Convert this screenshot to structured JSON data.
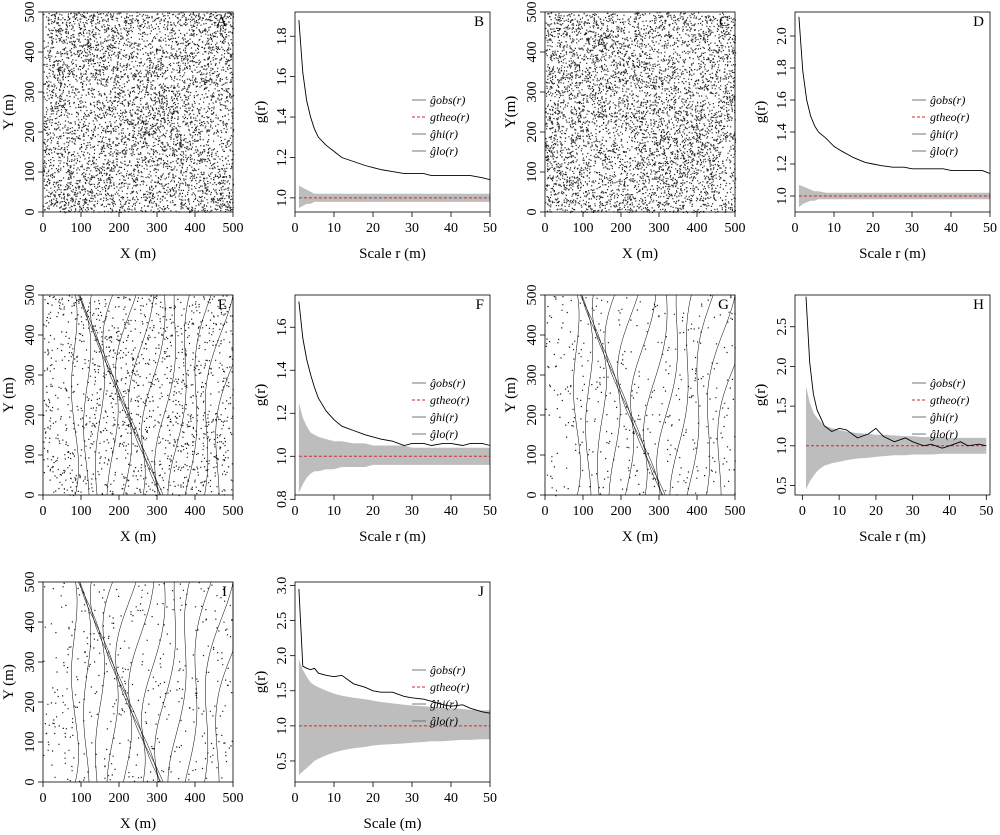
{
  "figure": {
    "panels": {
      "A": {
        "label": "A",
        "xlabel": "X (m)",
        "ylabel": "Y (m)"
      },
      "C": {
        "label": "C",
        "xlabel": "X (m)",
        "ylabel": "Y(m)"
      },
      "E": {
        "label": "E",
        "xlabel": "X (m)",
        "ylabel": "Y (m)"
      },
      "G": {
        "label": "G",
        "xlabel": "X (m)",
        "ylabel": "Y (m)"
      },
      "I": {
        "label": "I",
        "xlabel": "X (m)",
        "ylabel": "Y (m)"
      }
    },
    "legend": {
      "obs": "ĝobs(r)",
      "theo": "gtheo(r)",
      "hi": "ĝhi(r)",
      "lo": "ĝlo(r)"
    },
    "colors": {
      "observed": "#000000",
      "theoretical": "#d62728",
      "envelope": "#bdbdbd",
      "points": "#000000"
    }
  },
  "chart_data": [
    {
      "panel": "A",
      "type": "scatter",
      "label": "A",
      "xlabel": "X (m)",
      "ylabel": "Y (m)",
      "xlim": [
        0,
        500
      ],
      "ylim": [
        0,
        500
      ],
      "xticks": [
        0,
        100,
        200,
        300,
        400,
        500
      ],
      "yticks": [
        0,
        100,
        200,
        300,
        400,
        500
      ],
      "density": "very high",
      "contours": false
    },
    {
      "panel": "B",
      "type": "line",
      "label": "B",
      "xlabel": "Scale r (m)",
      "ylabel": "g(r)",
      "xlim": [
        0,
        50
      ],
      "ylim": [
        0.93,
        1.92
      ],
      "xticks": [
        0,
        10,
        20,
        30,
        40,
        50
      ],
      "yticks": [
        1.0,
        1.2,
        1.4,
        1.6,
        1.8
      ],
      "legend_position": "right",
      "x": [
        1,
        2,
        3,
        4,
        5,
        6,
        8,
        10,
        12,
        15,
        18,
        20,
        22,
        25,
        28,
        30,
        33,
        35,
        38,
        40,
        43,
        45,
        48,
        50
      ],
      "series": [
        {
          "key": "obs",
          "values": [
            1.88,
            1.62,
            1.48,
            1.4,
            1.34,
            1.3,
            1.26,
            1.23,
            1.2,
            1.18,
            1.16,
            1.15,
            1.14,
            1.13,
            1.12,
            1.12,
            1.12,
            1.11,
            1.11,
            1.11,
            1.11,
            1.11,
            1.1,
            1.09
          ]
        },
        {
          "key": "theo",
          "values": [
            1.0,
            1.0,
            1.0,
            1.0,
            1.0,
            1.0,
            1.0,
            1.0,
            1.0,
            1.0,
            1.0,
            1.0,
            1.0,
            1.0,
            1.0,
            1.0,
            1.0,
            1.0,
            1.0,
            1.0,
            1.0,
            1.0,
            1.0,
            1.0
          ]
        },
        {
          "key": "hi",
          "values": [
            1.06,
            1.05,
            1.04,
            1.03,
            1.02,
            1.02,
            1.02,
            1.02,
            1.02,
            1.02,
            1.02,
            1.02,
            1.02,
            1.02,
            1.02,
            1.02,
            1.02,
            1.02,
            1.02,
            1.02,
            1.02,
            1.02,
            1.02,
            1.02
          ]
        },
        {
          "key": "lo",
          "values": [
            0.95,
            0.96,
            0.97,
            0.97,
            0.98,
            0.98,
            0.98,
            0.98,
            0.98,
            0.98,
            0.98,
            0.98,
            0.98,
            0.98,
            0.98,
            0.98,
            0.98,
            0.98,
            0.98,
            0.98,
            0.98,
            0.98,
            0.98,
            0.98
          ]
        }
      ]
    },
    {
      "panel": "C",
      "type": "scatter",
      "label": "C",
      "xlabel": "X (m)",
      "ylabel": "Y(m)",
      "xlim": [
        0,
        500
      ],
      "ylim": [
        0,
        500
      ],
      "xticks": [
        0,
        100,
        200,
        300,
        400,
        500
      ],
      "yticks": [
        0,
        100,
        200,
        300,
        400,
        500
      ],
      "density": "very high",
      "contours": false
    },
    {
      "panel": "D",
      "type": "line",
      "label": "D",
      "xlabel": "Scale r (m)",
      "ylabel": "g(r)",
      "xlim": [
        0,
        50
      ],
      "ylim": [
        0.9,
        2.15
      ],
      "xticks": [
        0,
        10,
        20,
        30,
        40,
        50
      ],
      "yticks": [
        1.0,
        1.2,
        1.4,
        1.6,
        1.8,
        2.0
      ],
      "legend_position": "right",
      "x": [
        1,
        2,
        3,
        4,
        5,
        6,
        8,
        10,
        12,
        15,
        18,
        20,
        22,
        25,
        28,
        30,
        33,
        35,
        38,
        40,
        43,
        45,
        48,
        50
      ],
      "series": [
        {
          "key": "obs",
          "values": [
            2.12,
            1.78,
            1.6,
            1.5,
            1.44,
            1.4,
            1.36,
            1.31,
            1.28,
            1.24,
            1.21,
            1.2,
            1.19,
            1.18,
            1.18,
            1.17,
            1.17,
            1.17,
            1.17,
            1.16,
            1.16,
            1.16,
            1.16,
            1.14
          ]
        },
        {
          "key": "theo",
          "values": [
            1.0,
            1.0,
            1.0,
            1.0,
            1.0,
            1.0,
            1.0,
            1.0,
            1.0,
            1.0,
            1.0,
            1.0,
            1.0,
            1.0,
            1.0,
            1.0,
            1.0,
            1.0,
            1.0,
            1.0,
            1.0,
            1.0,
            1.0,
            1.0
          ]
        },
        {
          "key": "hi",
          "values": [
            1.07,
            1.06,
            1.05,
            1.04,
            1.03,
            1.03,
            1.02,
            1.02,
            1.02,
            1.02,
            1.02,
            1.02,
            1.02,
            1.02,
            1.02,
            1.02,
            1.02,
            1.02,
            1.02,
            1.02,
            1.02,
            1.02,
            1.02,
            1.02
          ]
        },
        {
          "key": "lo",
          "values": [
            0.93,
            0.95,
            0.96,
            0.97,
            0.97,
            0.98,
            0.98,
            0.98,
            0.98,
            0.98,
            0.98,
            0.98,
            0.98,
            0.98,
            0.98,
            0.98,
            0.98,
            0.98,
            0.98,
            0.98,
            0.98,
            0.98,
            0.98,
            0.98
          ]
        }
      ]
    },
    {
      "panel": "E",
      "type": "scatter",
      "label": "E",
      "xlabel": "X (m)",
      "ylabel": "Y (m)",
      "xlim": [
        0,
        500
      ],
      "ylim": [
        0,
        500
      ],
      "xticks": [
        0,
        100,
        200,
        300,
        400,
        500
      ],
      "yticks": [
        0,
        100,
        200,
        300,
        400,
        500
      ],
      "density": "medium",
      "contours": true
    },
    {
      "panel": "F",
      "type": "line",
      "label": "F",
      "xlabel": "Scale r (m)",
      "ylabel": "g(r)",
      "xlim": [
        0,
        50
      ],
      "ylim": [
        0.82,
        1.75
      ],
      "xticks": [
        0,
        10,
        20,
        30,
        40,
        50
      ],
      "yticks": [
        0.8,
        1.0,
        1.2,
        1.4,
        1.6
      ],
      "legend_position": "right",
      "x": [
        1,
        2,
        3,
        4,
        5,
        6,
        8,
        10,
        12,
        15,
        18,
        20,
        22,
        25,
        28,
        30,
        33,
        35,
        38,
        40,
        43,
        45,
        48,
        50
      ],
      "series": [
        {
          "key": "obs",
          "values": [
            1.72,
            1.55,
            1.45,
            1.38,
            1.32,
            1.27,
            1.21,
            1.17,
            1.14,
            1.12,
            1.1,
            1.09,
            1.08,
            1.07,
            1.05,
            1.06,
            1.06,
            1.05,
            1.06,
            1.06,
            1.05,
            1.06,
            1.06,
            1.05
          ]
        },
        {
          "key": "theo",
          "values": [
            1.0,
            1.0,
            1.0,
            1.0,
            1.0,
            1.0,
            1.0,
            1.0,
            1.0,
            1.0,
            1.0,
            1.0,
            1.0,
            1.0,
            1.0,
            1.0,
            1.0,
            1.0,
            1.0,
            1.0,
            1.0,
            1.0,
            1.0,
            1.0
          ]
        },
        {
          "key": "hi",
          "values": [
            1.25,
            1.18,
            1.14,
            1.11,
            1.1,
            1.09,
            1.08,
            1.07,
            1.07,
            1.06,
            1.06,
            1.05,
            1.05,
            1.05,
            1.05,
            1.04,
            1.04,
            1.04,
            1.04,
            1.04,
            1.04,
            1.04,
            1.04,
            1.04
          ]
        },
        {
          "key": "lo",
          "values": [
            0.83,
            0.87,
            0.9,
            0.92,
            0.93,
            0.93,
            0.94,
            0.94,
            0.95,
            0.95,
            0.95,
            0.96,
            0.96,
            0.96,
            0.96,
            0.96,
            0.96,
            0.96,
            0.96,
            0.96,
            0.96,
            0.96,
            0.96,
            0.96
          ]
        }
      ]
    },
    {
      "panel": "G",
      "type": "scatter",
      "label": "G",
      "xlabel": "X (m)",
      "ylabel": "Y (m)",
      "xlim": [
        0,
        500
      ],
      "ylim": [
        0,
        500
      ],
      "xticks": [
        0,
        100,
        200,
        300,
        400,
        500
      ],
      "yticks": [
        0,
        100,
        200,
        300,
        400,
        500
      ],
      "density": "low",
      "contours": true
    },
    {
      "panel": "H",
      "type": "line",
      "label": "H",
      "xlabel": "Scale r (m)",
      "ylabel": "g(r)",
      "xlim": [
        -2,
        51
      ],
      "ylim": [
        0.38,
        2.9
      ],
      "xticks": [
        0,
        10,
        20,
        30,
        40,
        50
      ],
      "yticks": [
        0.5,
        1.0,
        1.5,
        2.0,
        2.5
      ],
      "legend_position": "right",
      "x": [
        1,
        2,
        3,
        4,
        5,
        6,
        8,
        10,
        12,
        15,
        18,
        20,
        22,
        25,
        28,
        30,
        33,
        35,
        38,
        40,
        43,
        45,
        48,
        50
      ],
      "series": [
        {
          "key": "obs",
          "values": [
            2.88,
            2.05,
            1.65,
            1.45,
            1.35,
            1.25,
            1.18,
            1.22,
            1.2,
            1.1,
            1.15,
            1.22,
            1.12,
            1.05,
            1.1,
            1.05,
            1.0,
            1.02,
            0.97,
            1.0,
            1.05,
            1.0,
            1.02,
            1.0
          ]
        },
        {
          "key": "theo",
          "values": [
            1.0,
            1.0,
            1.0,
            1.0,
            1.0,
            1.0,
            1.0,
            1.0,
            1.0,
            1.0,
            1.0,
            1.0,
            1.0,
            1.0,
            1.0,
            1.0,
            1.0,
            1.0,
            1.0,
            1.0,
            1.0,
            1.0,
            1.0,
            1.0
          ]
        },
        {
          "key": "hi",
          "values": [
            1.75,
            1.55,
            1.42,
            1.35,
            1.3,
            1.26,
            1.22,
            1.2,
            1.18,
            1.16,
            1.15,
            1.14,
            1.14,
            1.13,
            1.12,
            1.12,
            1.11,
            1.11,
            1.11,
            1.1,
            1.1,
            1.1,
            1.1,
            1.1
          ]
        },
        {
          "key": "lo",
          "values": [
            0.45,
            0.55,
            0.62,
            0.68,
            0.72,
            0.75,
            0.78,
            0.8,
            0.82,
            0.84,
            0.85,
            0.86,
            0.87,
            0.88,
            0.88,
            0.89,
            0.89,
            0.89,
            0.9,
            0.9,
            0.9,
            0.9,
            0.9,
            0.9
          ]
        }
      ]
    },
    {
      "panel": "I",
      "type": "scatter",
      "label": "I",
      "xlabel": "X (m)",
      "ylabel": "Y (m)",
      "xlim": [
        0,
        500
      ],
      "ylim": [
        0,
        500
      ],
      "xticks": [
        0,
        100,
        200,
        300,
        400,
        500
      ],
      "yticks": [
        0,
        100,
        200,
        300,
        400,
        500
      ],
      "density": "low",
      "contours": true
    },
    {
      "panel": "J",
      "type": "line",
      "label": "J",
      "xlabel": "Scale (m)",
      "ylabel": "g(r)",
      "xlim": [
        0,
        50
      ],
      "ylim": [
        0.2,
        3.05
      ],
      "xticks": [
        0,
        10,
        20,
        30,
        40,
        50
      ],
      "yticks": [
        0.5,
        1.0,
        1.5,
        2.0,
        2.5,
        3.0
      ],
      "legend_position": "right",
      "x": [
        1,
        2,
        3,
        4,
        5,
        6,
        8,
        10,
        12,
        15,
        18,
        20,
        22,
        25,
        28,
        30,
        33,
        35,
        38,
        40,
        43,
        45,
        48,
        50
      ],
      "series": [
        {
          "key": "obs",
          "values": [
            2.95,
            1.85,
            1.82,
            1.8,
            1.82,
            1.75,
            1.72,
            1.7,
            1.72,
            1.6,
            1.55,
            1.5,
            1.48,
            1.48,
            1.42,
            1.4,
            1.38,
            1.35,
            1.3,
            1.28,
            1.3,
            1.25,
            1.2,
            1.18
          ]
        },
        {
          "key": "theo",
          "values": [
            1.0,
            1.0,
            1.0,
            1.0,
            1.0,
            1.0,
            1.0,
            1.0,
            1.0,
            1.0,
            1.0,
            1.0,
            1.0,
            1.0,
            1.0,
            1.0,
            1.0,
            1.0,
            1.0,
            1.0,
            1.0,
            1.0,
            1.0,
            1.0
          ]
        },
        {
          "key": "hi",
          "values": [
            1.95,
            1.8,
            1.7,
            1.62,
            1.58,
            1.55,
            1.5,
            1.46,
            1.43,
            1.4,
            1.38,
            1.36,
            1.34,
            1.32,
            1.3,
            1.29,
            1.28,
            1.27,
            1.26,
            1.25,
            1.24,
            1.23,
            1.22,
            1.22
          ]
        },
        {
          "key": "lo",
          "values": [
            0.3,
            0.35,
            0.4,
            0.45,
            0.5,
            0.53,
            0.58,
            0.62,
            0.65,
            0.68,
            0.7,
            0.72,
            0.73,
            0.74,
            0.75,
            0.76,
            0.77,
            0.78,
            0.78,
            0.79,
            0.8,
            0.8,
            0.81,
            0.81
          ]
        }
      ]
    }
  ]
}
